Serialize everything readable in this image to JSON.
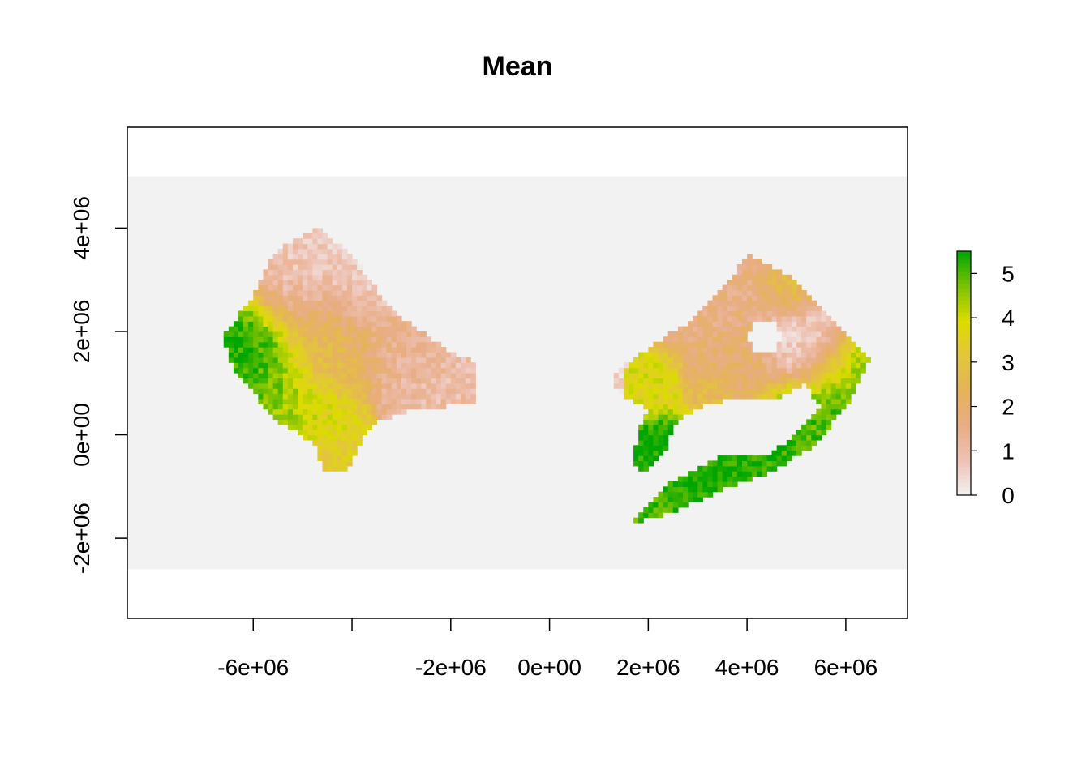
{
  "chart_data": {
    "type": "heatmap",
    "title": "Mean",
    "xlabel": "",
    "ylabel": "",
    "xlim": [
      -8550000,
      7250000
    ],
    "ylim": [
      -3550000,
      5950000
    ],
    "raster_extent": {
      "x": [
        -8550000,
        7250000
      ],
      "y": [
        -2600000,
        5000000
      ]
    },
    "background_value_color": "#f2f2f2",
    "x_ticks": [
      {
        "value": -6000000,
        "label": "-6e+06"
      },
      {
        "value": -4000000,
        "label": ""
      },
      {
        "value": -2000000,
        "label": "-2e+06"
      },
      {
        "value": 0,
        "label": "0e+00"
      },
      {
        "value": 2000000,
        "label": "2e+06"
      },
      {
        "value": 4000000,
        "label": "4e+06"
      },
      {
        "value": 6000000,
        "label": "6e+06"
      }
    ],
    "y_ticks": [
      {
        "value": -2000000,
        "label": "-2e+06"
      },
      {
        "value": 0,
        "label": "0e+00"
      },
      {
        "value": 2000000,
        "label": "2e+06"
      },
      {
        "value": 4000000,
        "label": "4e+06"
      }
    ],
    "legend": {
      "placement": "right",
      "min": 0,
      "max": 5.5,
      "ticks": [
        {
          "value": 0,
          "label": "0"
        },
        {
          "value": 1,
          "label": "1"
        },
        {
          "value": 2,
          "label": "2"
        },
        {
          "value": 3,
          "label": "3"
        },
        {
          "value": 4,
          "label": "4"
        },
        {
          "value": 5,
          "label": "5"
        }
      ],
      "colors": [
        "#f2f2f2",
        "#eec2b5",
        "#e8ad85",
        "#e6b35a",
        "#e3c63b",
        "#dcdc00",
        "#7cc300",
        "#00a600"
      ]
    },
    "grid": false,
    "cell_size": 100000,
    "regions": [
      {
        "name": "",
        "outline": [
          [
            -6600000,
            1900000
          ],
          [
            -6000000,
            2700000
          ],
          [
            -5700000,
            3300000
          ],
          [
            -5300000,
            3700000
          ],
          [
            -4700000,
            4000000
          ],
          [
            -4000000,
            3500000
          ],
          [
            -3500000,
            2800000
          ],
          [
            -2900000,
            2200000
          ],
          [
            -2000000,
            1600000
          ],
          [
            -1500000,
            1400000
          ],
          [
            -1500000,
            600000
          ],
          [
            -2700000,
            500000
          ],
          [
            -3600000,
            200000
          ],
          [
            -3900000,
            -300000
          ],
          [
            -4100000,
            -700000
          ],
          [
            -4600000,
            -700000
          ],
          [
            -4700000,
            -200000
          ],
          [
            -5400000,
            200000
          ],
          [
            -5900000,
            700000
          ],
          [
            -6400000,
            1300000
          ]
        ],
        "hotspots": [
          {
            "x": -6200000,
            "y": 1800000,
            "r": 900000,
            "v": 5.4
          },
          {
            "x": -5800000,
            "y": 1000000,
            "r": 700000,
            "v": 5.0
          },
          {
            "x": -5200000,
            "y": 600000,
            "r": 700000,
            "v": 4.3
          },
          {
            "x": -4500000,
            "y": 200000,
            "r": 600000,
            "v": 3.8
          },
          {
            "x": -4400000,
            "y": -400000,
            "r": 500000,
            "v": 3.2
          },
          {
            "x": -4500000,
            "y": 1500000,
            "r": 800000,
            "v": 3.0
          },
          {
            "x": -4200000,
            "y": 2000000,
            "r": 900000,
            "v": 1.9
          },
          {
            "x": -3000000,
            "y": 1700000,
            "r": 700000,
            "v": 1.4
          },
          {
            "x": -2500000,
            "y": 1200000,
            "r": 800000,
            "v": 1.0
          },
          {
            "x": -5300000,
            "y": 3000000,
            "r": 800000,
            "v": 0.8
          },
          {
            "x": -3700000,
            "y": 3000000,
            "r": 800000,
            "v": 0.4
          }
        ]
      },
      {
        "name": "",
        "outline": [
          [
            1300000,
            1200000
          ],
          [
            2200000,
            1800000
          ],
          [
            3000000,
            2300000
          ],
          [
            3600000,
            2900000
          ],
          [
            4000000,
            3500000
          ],
          [
            4800000,
            3100000
          ],
          [
            5500000,
            2500000
          ],
          [
            6000000,
            1900000
          ],
          [
            6500000,
            1500000
          ],
          [
            6100000,
            700000
          ],
          [
            5400000,
            -200000
          ],
          [
            4500000,
            -700000
          ],
          [
            3400000,
            -1100000
          ],
          [
            2500000,
            -1500000
          ],
          [
            1700000,
            -1700000
          ],
          [
            2200000,
            -1100000
          ],
          [
            2700000,
            -800000
          ],
          [
            3500000,
            -400000
          ],
          [
            4400000,
            -400000
          ],
          [
            5000000,
            0
          ],
          [
            5500000,
            500000
          ],
          [
            5200000,
            1000000
          ],
          [
            4600000,
            700000
          ],
          [
            3900000,
            700000
          ],
          [
            3200000,
            600000
          ],
          [
            2600000,
            300000
          ],
          [
            2300000,
            -400000
          ],
          [
            1900000,
            -800000
          ],
          [
            1700000,
            -500000
          ],
          [
            1800000,
            100000
          ],
          [
            2000000,
            500000
          ],
          [
            1600000,
            700000
          ],
          [
            1300000,
            1000000
          ]
        ],
        "holes": [
          {
            "x": 4350000,
            "y": 1900000,
            "r": 330000
          }
        ],
        "hotspots": [
          {
            "x": 3000000,
            "y": -1000000,
            "r": 900000,
            "v": 5.4
          },
          {
            "x": 4200000,
            "y": -600000,
            "r": 800000,
            "v": 5.3
          },
          {
            "x": 5500000,
            "y": 200000,
            "r": 800000,
            "v": 5.0
          },
          {
            "x": 6100000,
            "y": 1300000,
            "r": 600000,
            "v": 4.5
          },
          {
            "x": 2200000,
            "y": -1500000,
            "r": 500000,
            "v": 5.0
          },
          {
            "x": 2200000,
            "y": 1000000,
            "r": 400000,
            "v": 3.8
          },
          {
            "x": 3300000,
            "y": 800000,
            "r": 300000,
            "v": 3.0
          },
          {
            "x": 3600000,
            "y": 1300000,
            "r": 700000,
            "v": 2.0
          },
          {
            "x": 5000000,
            "y": 2900000,
            "r": 500000,
            "v": 2.6
          },
          {
            "x": 3400000,
            "y": 2600000,
            "r": 800000,
            "v": 1.6
          },
          {
            "x": 5300000,
            "y": 1800000,
            "r": 700000,
            "v": 0.6
          }
        ]
      }
    ]
  }
}
